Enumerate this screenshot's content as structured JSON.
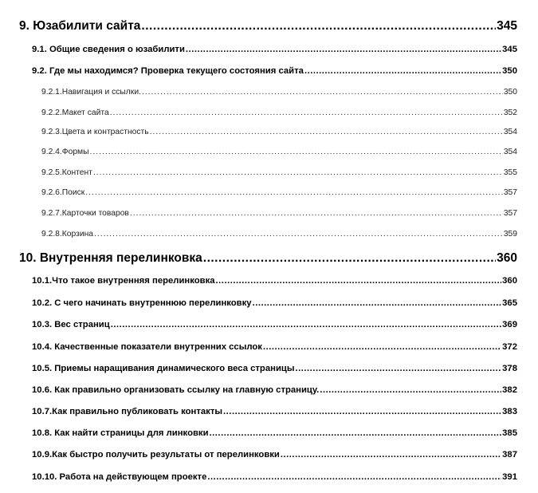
{
  "toc": [
    {
      "level": 1,
      "title": "9. Юзабилити сайта",
      "page": "345"
    },
    {
      "level": 2,
      "title": "9.1. Общие сведения о юзабилити",
      "page": "345"
    },
    {
      "level": 2,
      "title": "9.2. Где мы находимся? Проверка текущего состояния сайта",
      "page": "350"
    },
    {
      "level": 3,
      "title": "9.2.1.Навигация и ссылки.",
      "page": "350"
    },
    {
      "level": 3,
      "title": "9.2.2.Макет сайта",
      "page": "352"
    },
    {
      "level": 3,
      "title": "9.2.3.Цвета и контрастность",
      "page": "354"
    },
    {
      "level": 3,
      "title": "9.2.4.Формы",
      "page": "354"
    },
    {
      "level": 3,
      "title": "9.2.5.Контент",
      "page": "355"
    },
    {
      "level": 3,
      "title": "9.2.6.Поиск",
      "page": "357"
    },
    {
      "level": 3,
      "title": "9.2.7.Карточки товаров",
      "page": "357"
    },
    {
      "level": 3,
      "title": "9.2.8.Корзина",
      "page": "359"
    },
    {
      "level": 1,
      "title": "10. Внутренняя перелинковка",
      "page": "360"
    },
    {
      "level": 2,
      "title": "10.1.Что такое внутренняя перелинковка",
      "page": "360"
    },
    {
      "level": 2,
      "title": "10.2. С чего начинать внутреннюю перелинковку",
      "page": "365"
    },
    {
      "level": 2,
      "title": "10.3. Вес страниц",
      "page": "369"
    },
    {
      "level": 2,
      "title": "10.4. Качественные показатели внутренних ссылок",
      "page": "372"
    },
    {
      "level": 2,
      "title": "10.5. Приемы наращивания динамического веса страницы",
      "page": "378"
    },
    {
      "level": 2,
      "title": "10.6. Как правильно организовать ссылку на главную страницу.",
      "page": "382"
    },
    {
      "level": 2,
      "title": "10.7.Как правильно публиковать контакты",
      "page": "383"
    },
    {
      "level": 2,
      "title": "10.8. Как найти страницы для линковки",
      "page": "385"
    },
    {
      "level": 2,
      "title": "10.9.Как быстро получить результаты от перелинковки",
      "page": "387"
    },
    {
      "level": 2,
      "title": "10.10. Работа на действующем проекте",
      "page": "391"
    }
  ]
}
